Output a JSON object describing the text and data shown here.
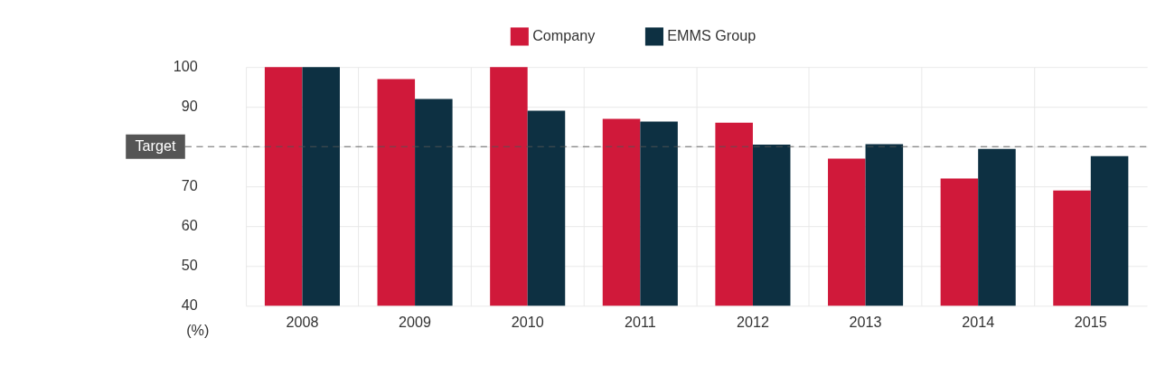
{
  "chart_data": {
    "type": "bar",
    "ylabel": "(%)",
    "categories": [
      "2008",
      "2009",
      "2010",
      "2011",
      "2012",
      "2013",
      "2014",
      "2015"
    ],
    "series": [
      {
        "name": "Company",
        "color": "#d0193a",
        "values": [
          100,
          97,
          100,
          87,
          86,
          77,
          72,
          69
        ]
      },
      {
        "name": "EMMS Group",
        "color": "#0d3042",
        "values": [
          100,
          92,
          89,
          86.3,
          80.5,
          80.6,
          79.4,
          77.6
        ]
      }
    ],
    "ylim": [
      40,
      100
    ],
    "yticks": [
      40,
      50,
      60,
      70,
      {
        "value": 80,
        "label": null
      },
      90,
      100
    ],
    "grid": true,
    "legend": "top",
    "ref_lines": [
      {
        "axis": "y",
        "value": 80,
        "label": "Target",
        "color": "#555555",
        "line_style": "dashed"
      }
    ]
  }
}
